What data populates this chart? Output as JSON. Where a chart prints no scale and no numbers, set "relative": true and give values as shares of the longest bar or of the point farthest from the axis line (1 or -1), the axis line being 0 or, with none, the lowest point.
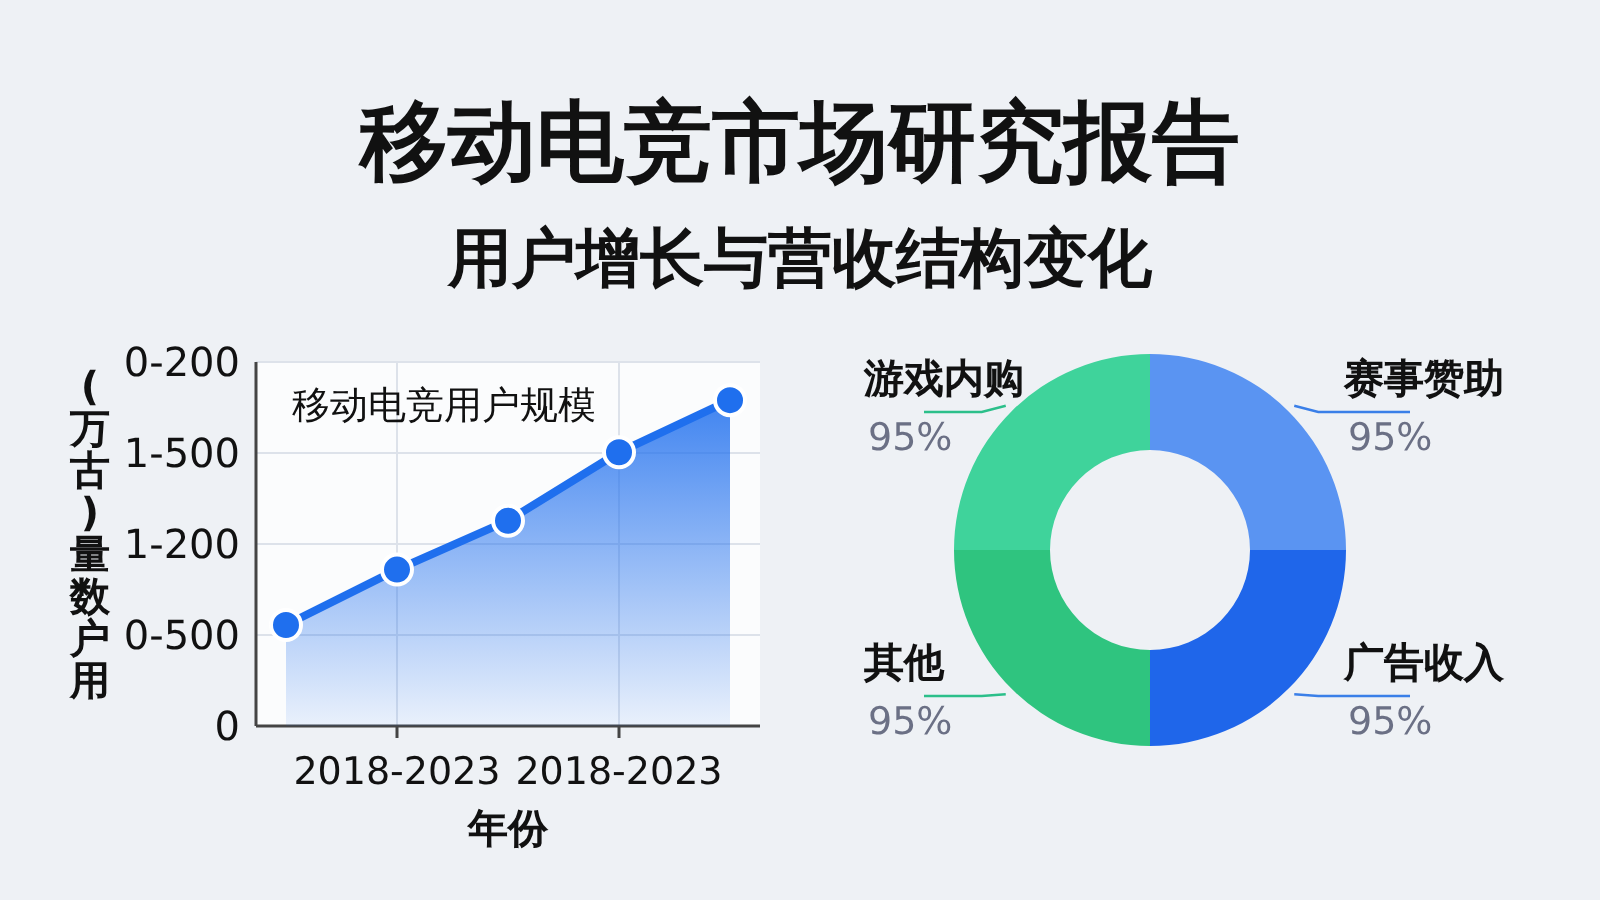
{
  "chart_data": [
    {
      "type": "area",
      "title": "移动电竞市场研究报告",
      "subtitle": "用户增长与营收结构变化",
      "annotations": [
        "移动电竞用户规模",
        "0-200",
        "1-500",
        "1-200",
        "0-500",
        "0"
      ],
      "xlabel": "年份",
      "ylabel": "(万古)量数户用",
      "categories": [
        null,
        "2018-2023",
        null,
        "2018-2023",
        null
      ],
      "values": [
        0.31,
        0.48,
        0.63,
        0.84,
        1
      ],
      "color": "#1f6fee",
      "relative": true,
      "grid": true,
      "marker": "circle"
    },
    {
      "type": "donut",
      "categories": [
        "赛事赞助",
        "广告收入",
        "其他",
        "游戏内购"
      ],
      "values": [
        95,
        95,
        95,
        95
      ],
      "colors": [
        "#5a94f2",
        "#1f66ea",
        "#2fc47f",
        "#3fd39b"
      ],
      "value_labels": [
        "95%",
        "95%",
        "95%",
        "95%"
      ]
    }
  ]
}
